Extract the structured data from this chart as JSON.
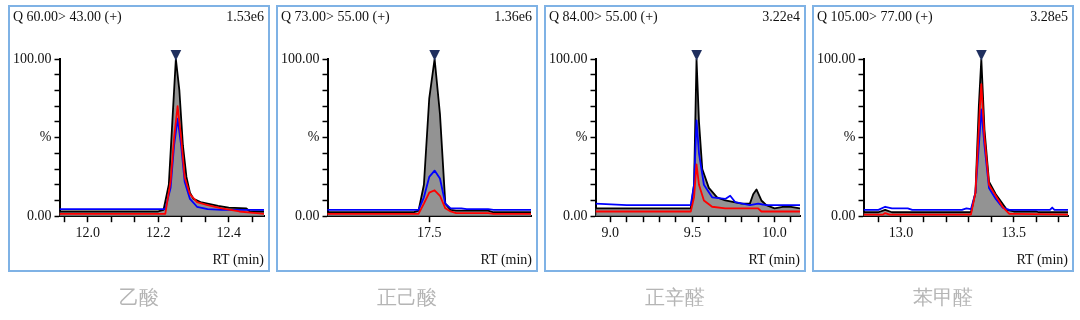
{
  "chart_data": [
    {
      "type": "line",
      "title": "Q 60.00> 43.00 (+)",
      "subtitle": "1.53e6",
      "xlabel": "RT (min)",
      "xlim": [
        11.92,
        12.5
      ],
      "xticks": [
        {
          "value": 11.933,
          "label": null
        },
        {
          "value": 12,
          "label": "12.0"
        },
        {
          "value": 12.067,
          "label": null
        },
        {
          "value": 12.133,
          "label": null
        },
        {
          "value": 12.2,
          "label": "12.2"
        },
        {
          "value": 12.267,
          "label": null
        },
        {
          "value": 12.333,
          "label": null
        },
        {
          "value": 12.4,
          "label": "12.4"
        },
        {
          "value": 12.467,
          "label": null
        }
      ],
      "ylim": [
        0,
        100
      ],
      "yticks": [
        {
          "value": 0,
          "label": "0.00"
        },
        {
          "value": 10,
          "label": null
        },
        {
          "value": 20,
          "label": null
        },
        {
          "value": 30,
          "label": null
        },
        {
          "value": 40,
          "label": null
        },
        {
          "value": 50,
          "label": "%"
        },
        {
          "value": 60,
          "label": null
        },
        {
          "value": 70,
          "label": null
        },
        {
          "value": 80,
          "label": null
        },
        {
          "value": 90,
          "label": null
        },
        {
          "value": 100,
          "label": "100.00"
        }
      ],
      "grid": false,
      "legend": false,
      "marker": "none",
      "series": [
        {
          "type": "area",
          "color": "#000000",
          "x": [
            11.92,
            12.2,
            12.215,
            12.23,
            12.24,
            12.25,
            12.26,
            12.27,
            12.28,
            12.29,
            12.3,
            12.32,
            12.34,
            12.37,
            12.4,
            12.45,
            12.46,
            12.5
          ],
          "values": [
            3,
            3,
            4,
            20,
            60,
            100,
            80,
            45,
            25,
            15,
            11,
            9,
            8,
            6.5,
            5.5,
            5,
            3,
            3
          ]
        },
        {
          "type": "line",
          "color": "#0000ff",
          "x": [
            11.92,
            12.22,
            12.235,
            12.245,
            12.255,
            12.265,
            12.275,
            12.29,
            12.31,
            12.34,
            12.38,
            12.5
          ],
          "values": [
            4.5,
            4.5,
            18,
            45,
            62,
            45,
            22,
            11,
            6,
            4.5,
            4,
            4
          ]
        },
        {
          "type": "line",
          "color": "#ff0000",
          "x": [
            11.92,
            12.22,
            12.235,
            12.245,
            12.255,
            12.265,
            12.275,
            12.29,
            12.31,
            12.34,
            12.38,
            12.43,
            12.5
          ],
          "values": [
            1.5,
            1.5,
            22,
            50,
            70,
            50,
            25,
            14,
            9,
            7,
            5,
            3,
            1.5
          ]
        }
      ],
      "annotations": [
        {
          "text": "▼",
          "x": 12.25,
          "y": 100
        },
        "乙酸"
      ]
    },
    {
      "type": "line",
      "title": "Q 73.00> 55.00 (+)",
      "subtitle": "1.36e6",
      "xlabel": "RT (min)",
      "categories": [
        null,
        null,
        null,
        null,
        null,
        null,
        null,
        null,
        null,
        null,
        null,
        null,
        null,
        null,
        null,
        null,
        null,
        null,
        null,
        "17.5",
        null,
        null,
        null,
        null,
        null,
        null,
        null,
        null,
        null,
        null,
        null,
        null,
        null,
        null,
        null,
        null,
        null,
        null,
        null
      ],
      "ylim": [
        0,
        100
      ],
      "yticks": [
        {
          "value": 0,
          "label": "0.00"
        },
        {
          "value": 10,
          "label": null
        },
        {
          "value": 20,
          "label": null
        },
        {
          "value": 30,
          "label": null
        },
        {
          "value": 40,
          "label": null
        },
        {
          "value": 50,
          "label": "%"
        },
        {
          "value": 60,
          "label": null
        },
        {
          "value": 70,
          "label": null
        },
        {
          "value": 80,
          "label": null
        },
        {
          "value": 90,
          "label": null
        },
        {
          "value": 100,
          "label": "100.00"
        }
      ],
      "grid": false,
      "legend": false,
      "marker": "none",
      "series": [
        {
          "type": "area",
          "color": "#000000",
          "values": [
            2.5,
            2.5,
            2.5,
            2.5,
            2.5,
            2.5,
            2.5,
            2.5,
            2.5,
            2.5,
            2.5,
            2.5,
            2.5,
            2.5,
            2.5,
            2.5,
            2.5,
            3.5,
            20,
            75,
            100,
            65,
            8,
            4,
            3.5,
            3.5,
            3.5,
            3.5,
            3.5,
            3.5,
            3.5,
            2.5,
            2.5,
            2.5,
            2.5,
            2.5,
            2.5,
            2.5,
            2.5
          ]
        },
        {
          "type": "line",
          "color": "#0000ff",
          "values": [
            4,
            4,
            4,
            4,
            4,
            4,
            4,
            4,
            4,
            4,
            4,
            4,
            4,
            4,
            4,
            4,
            4,
            4,
            12,
            25,
            29,
            24,
            8,
            5,
            5,
            5,
            4.5,
            4.5,
            4.5,
            4.5,
            4.5,
            4,
            4,
            4,
            4,
            4,
            4,
            4,
            4
          ]
        },
        {
          "type": "line",
          "color": "#ff0000",
          "values": [
            1.5,
            1.5,
            1.5,
            1.5,
            1.5,
            1.5,
            1.5,
            1.5,
            1.5,
            1.5,
            1.5,
            1.5,
            1.5,
            1.5,
            1.5,
            1.5,
            1.5,
            1.5,
            8,
            15,
            16.5,
            13,
            5,
            3,
            2,
            2,
            2,
            2,
            2,
            2,
            2,
            1.5,
            1.5,
            1.5,
            1.5,
            1.5,
            1.5,
            1.5,
            1.5
          ]
        }
      ],
      "annotations": [
        {
          "text": "▼",
          "y": 100
        },
        "正己酸"
      ]
    },
    {
      "type": "line",
      "title": "Q 84.00> 55.00 (+)",
      "subtitle": "3.22e4",
      "xlabel": "RT (min)",
      "xlim": [
        8.91,
        10.155
      ],
      "xticks": [
        {
          "value": 9,
          "label": "9.0"
        },
        {
          "value": 9.1,
          "label": null
        },
        {
          "value": 9.2,
          "label": null
        },
        {
          "value": 9.3,
          "label": null
        },
        {
          "value": 9.4,
          "label": null
        },
        {
          "value": 9.5,
          "label": "9.5"
        },
        {
          "value": 9.6,
          "label": null
        },
        {
          "value": 9.7,
          "label": null
        },
        {
          "value": 9.8,
          "label": null
        },
        {
          "value": 9.9,
          "label": null
        },
        {
          "value": 10,
          "label": "10.0"
        },
        {
          "value": 10.1,
          "label": null
        }
      ],
      "ylim": [
        0,
        100
      ],
      "yticks": [
        {
          "value": 0,
          "label": "0.00"
        },
        {
          "value": 10,
          "label": null
        },
        {
          "value": 20,
          "label": null
        },
        {
          "value": 30,
          "label": null
        },
        {
          "value": 40,
          "label": null
        },
        {
          "value": 50,
          "label": "%"
        },
        {
          "value": 60,
          "label": null
        },
        {
          "value": 70,
          "label": null
        },
        {
          "value": 80,
          "label": null
        },
        {
          "value": 90,
          "label": null
        },
        {
          "value": 100,
          "label": "100.00"
        }
      ],
      "grid": false,
      "legend": false,
      "marker": "none",
      "series": [
        {
          "type": "area",
          "color": "#000000",
          "x": [
            8.91,
            9.49,
            9.51,
            9.525,
            9.54,
            9.56,
            9.6,
            9.65,
            9.7,
            9.8,
            9.85,
            9.87,
            9.89,
            9.92,
            9.95,
            10,
            10.05,
            10.1,
            10.155
          ],
          "values": [
            5,
            5,
            20,
            100,
            60,
            30,
            18,
            12,
            10,
            8,
            8,
            14,
            17,
            10,
            7,
            5,
            6,
            6,
            5
          ]
        },
        {
          "type": "line",
          "color": "#0000ff",
          "x": [
            8.91,
            9.1,
            9.3,
            9.49,
            9.51,
            9.525,
            9.54,
            9.57,
            9.62,
            9.7,
            9.73,
            9.76,
            9.85,
            9.9,
            9.95,
            10.155
          ],
          "values": [
            8,
            7,
            7,
            7,
            20,
            61,
            40,
            20,
            12,
            11,
            13,
            9,
            7,
            8,
            7,
            7
          ]
        },
        {
          "type": "line",
          "color": "#ff0000",
          "x": [
            8.91,
            9.49,
            9.51,
            9.525,
            9.54,
            9.57,
            9.62,
            9.7,
            9.9,
            9.92,
            10.155
          ],
          "values": [
            3,
            3,
            12,
            33,
            20,
            10,
            6,
            5,
            5,
            3,
            3
          ]
        }
      ],
      "annotations": [
        {
          "text": "▼",
          "x": 9.525,
          "y": 100
        },
        "正辛醛"
      ]
    },
    {
      "type": "line",
      "title": "Q 105.00> 77.00 (+)",
      "subtitle": "3.28e5",
      "xlabel": "RT (min)",
      "xlim": [
        12.834,
        13.74
      ],
      "xticks": [
        {
          "value": 12.9,
          "label": null
        },
        {
          "value": 13,
          "label": "13.0"
        },
        {
          "value": 13.1,
          "label": null
        },
        {
          "value": 13.2,
          "label": null
        },
        {
          "value": 13.3,
          "label": null
        },
        {
          "value": 13.4,
          "label": null
        },
        {
          "value": 13.5,
          "label": "13.5"
        },
        {
          "value": 13.6,
          "label": null
        },
        {
          "value": 13.7,
          "label": null
        }
      ],
      "ylim": [
        0,
        100
      ],
      "yticks": [
        {
          "value": 0,
          "label": "0.00"
        },
        {
          "value": 10,
          "label": null
        },
        {
          "value": 20,
          "label": null
        },
        {
          "value": 30,
          "label": null
        },
        {
          "value": 40,
          "label": null
        },
        {
          "value": 50,
          "label": "%"
        },
        {
          "value": 60,
          "label": null
        },
        {
          "value": 70,
          "label": null
        },
        {
          "value": 80,
          "label": null
        },
        {
          "value": 90,
          "label": null
        },
        {
          "value": 100,
          "label": "100.00"
        }
      ],
      "grid": false,
      "legend": false,
      "marker": "none",
      "series": [
        {
          "type": "area",
          "color": "#000000",
          "x": [
            12.834,
            12.9,
            12.93,
            12.96,
            13.31,
            13.33,
            13.345,
            13.356,
            13.37,
            13.39,
            13.42,
            13.44,
            13.47,
            13.5,
            13.6,
            13.61,
            13.74
          ],
          "values": [
            2.5,
            2.5,
            4,
            2.5,
            2.5,
            15,
            70,
            100,
            55,
            22,
            14,
            10,
            4,
            3,
            3,
            2.5,
            2.5
          ]
        },
        {
          "type": "line",
          "color": "#0000ff",
          "x": [
            12.834,
            12.9,
            12.93,
            12.96,
            13.03,
            13.05,
            13.27,
            13.29,
            13.31,
            13.33,
            13.35,
            13.356,
            13.37,
            13.39,
            13.42,
            13.45,
            13.48,
            13.66,
            13.67,
            13.68,
            13.74
          ],
          "values": [
            4,
            4,
            6,
            5,
            5,
            4,
            4,
            5,
            4.5,
            15,
            55,
            68,
            45,
            18,
            11,
            5.5,
            4,
            4,
            5.5,
            4,
            4
          ]
        },
        {
          "type": "line",
          "color": "#ff0000",
          "x": [
            12.834,
            12.92,
            12.93,
            12.95,
            13.31,
            13.33,
            13.35,
            13.356,
            13.37,
            13.39,
            13.42,
            13.45,
            13.48,
            13.74
          ],
          "values": [
            1,
            1,
            2,
            1,
            1,
            15,
            70,
            84,
            50,
            20,
            13,
            6,
            1.5,
            1
          ]
        }
      ],
      "annotations": [
        {
          "text": "▼",
          "x": 13.356,
          "y": 100
        },
        "苯甲醛"
      ]
    }
  ]
}
